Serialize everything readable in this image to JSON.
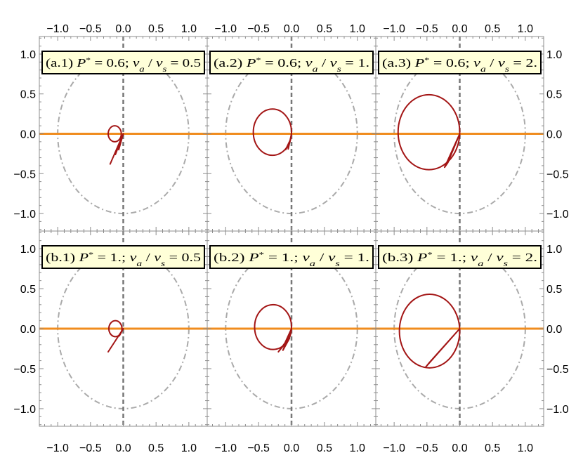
{
  "chart_data": {
    "type": "line",
    "layout": "2x3 grid of parametric plots",
    "shared_axes": {
      "xlim": [
        -1.28,
        1.28
      ],
      "ylim": [
        -1.22,
        1.22
      ],
      "xticks": [
        -1.0,
        -0.5,
        0.0,
        0.5,
        1.0
      ],
      "yticks": [
        1.0,
        0.5,
        0.0,
        -0.5,
        -1.0
      ],
      "xtick_labels": [
        "−1.0",
        "−0.5",
        "0.0",
        "0.5",
        "1.0"
      ],
      "ytick_labels": [
        "1.0",
        "0.5",
        "0.0",
        "−0.5",
        "−1.0"
      ],
      "grid": false,
      "frame": true
    },
    "reference_lines": {
      "unit_circle_color": "#aaaaaa",
      "vertical_axis_color": "#777777",
      "horizontal_axis_color": "#f08c1e"
    },
    "curve_color": "#a31515",
    "label_box_fill": "#ffffd8",
    "panels": [
      {
        "label": "(a.1) P* = 0.6;  va / vs = 0.5",
        "label_parts": {
          "id": "(a.1) ",
          "p_value": "0.6",
          "v_ratio": "0.5"
        },
        "loop": {
          "cx": -0.13,
          "cy": 0.0,
          "r": 0.1
        },
        "tail": [
          [
            0,
            0
          ],
          [
            -0.2,
            -0.38
          ],
          [
            0,
            0
          ],
          [
            -0.12,
            -0.26
          ],
          [
            0,
            0
          ],
          [
            -0.07,
            -0.2
          ],
          [
            0,
            0
          ]
        ]
      },
      {
        "label": "(a.2) P* = 0.6;  va / vs = 1.",
        "label_parts": {
          "id": "(a.2) ",
          "p_value": "0.6",
          "v_ratio": "1."
        },
        "loop": {
          "cx": -0.29,
          "cy": 0.02,
          "r": 0.29
        },
        "tail": [
          [
            0,
            0
          ],
          [
            -0.03,
            -0.12
          ],
          [
            -0.09,
            -0.2
          ],
          [
            -0.02,
            -0.08
          ],
          [
            -0.05,
            -0.19
          ],
          [
            0,
            0
          ]
        ]
      },
      {
        "label": "(a.3) P* = 0.6;  va / vs = 2.",
        "label_parts": {
          "id": "(a.3) ",
          "p_value": "0.6",
          "v_ratio": "2."
        },
        "loop": {
          "cx": -0.47,
          "cy": 0.02,
          "r": 0.47
        },
        "tail": [
          [
            0,
            0
          ],
          [
            -0.23,
            -0.42
          ],
          [
            -0.18,
            -0.36
          ],
          [
            0,
            0
          ]
        ]
      },
      {
        "label": "(b.1) P* = 1.;  va / vs = 0.5",
        "label_parts": {
          "id": "(b.1) ",
          "p_value": "1.",
          "v_ratio": "0.5"
        },
        "loop": {
          "cx": -0.12,
          "cy": 0.0,
          "r": 0.1
        },
        "tail": [
          [
            0,
            0
          ],
          [
            -0.23,
            -0.29
          ],
          [
            0,
            0
          ],
          [
            -0.06,
            -0.09
          ],
          [
            0,
            0
          ]
        ]
      },
      {
        "label": "(b.2) P* = 1.;  va / vs = 1.",
        "label_parts": {
          "id": "(b.2) ",
          "p_value": "1.",
          "v_ratio": "1."
        },
        "loop": {
          "cx": -0.28,
          "cy": 0.02,
          "r": 0.28
        },
        "tail": [
          [
            0,
            0
          ],
          [
            -0.1,
            -0.18
          ],
          [
            -0.2,
            -0.29
          ],
          [
            -0.03,
            -0.12
          ],
          [
            -0.13,
            -0.27
          ],
          [
            0,
            0
          ]
        ]
      },
      {
        "label": "(b.3) P* = 1.;  va / vs = 2.",
        "label_parts": {
          "id": "(b.3) ",
          "p_value": "1.",
          "v_ratio": "2."
        },
        "loop": {
          "cx": -0.46,
          "cy": -0.03,
          "r": 0.46
        },
        "tail": [
          [
            0,
            0
          ],
          [
            -0.52,
            -0.48
          ],
          [
            -0.46,
            -0.42
          ],
          [
            0,
            0
          ]
        ]
      }
    ]
  }
}
